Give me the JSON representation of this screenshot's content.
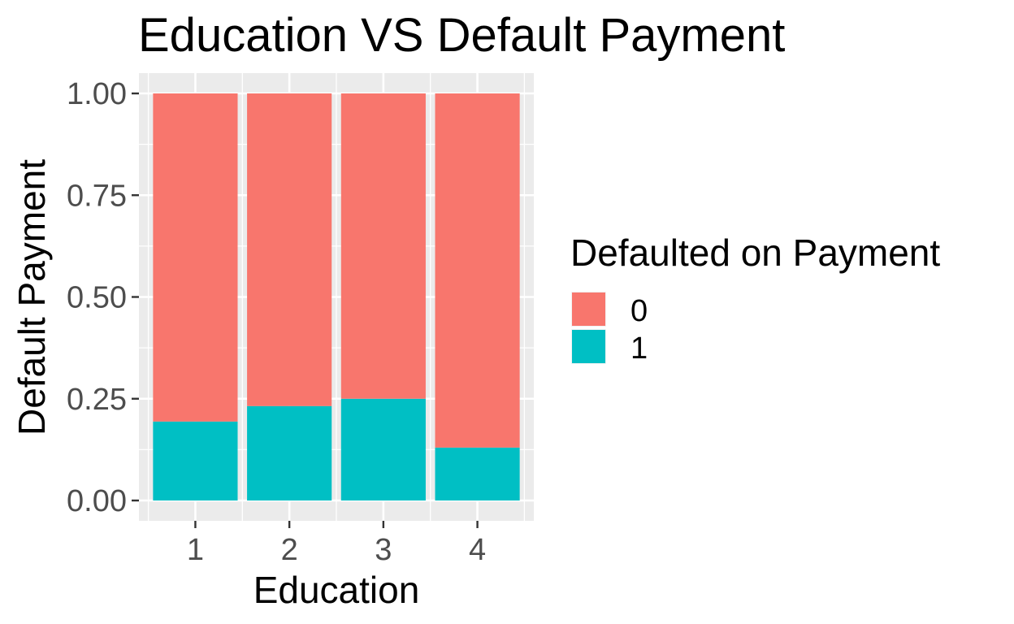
{
  "chart_data": {
    "type": "bar",
    "stacked": true,
    "title": "Education VS Default Payment",
    "xlabel": "Education",
    "ylabel": "Default Payment",
    "categories": [
      "1",
      "2",
      "3",
      "4"
    ],
    "ylim": [
      0,
      1
    ],
    "yticks": [
      "0.00",
      "0.25",
      "0.50",
      "0.75",
      "1.00"
    ],
    "grid": true,
    "legend": {
      "title": "Defaulted on Payment",
      "placement": "right"
    },
    "series": [
      {
        "name": "1",
        "color": "#00BFC4",
        "values": [
          0.194,
          0.232,
          0.25,
          0.13
        ]
      },
      {
        "name": "0",
        "color": "#F8766D",
        "values": [
          0.806,
          0.768,
          0.75,
          0.87
        ]
      }
    ],
    "legend_order": [
      "0",
      "1"
    ]
  }
}
